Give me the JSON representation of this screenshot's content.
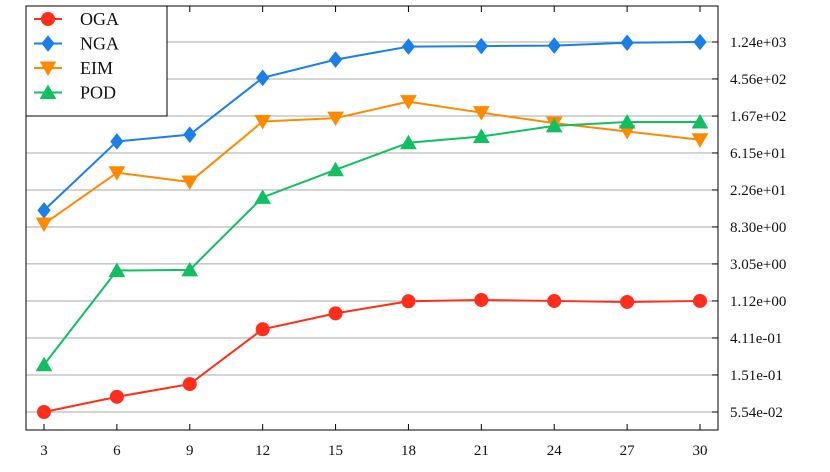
{
  "chart_data": {
    "type": "line",
    "title": "",
    "xlabel": "",
    "ylabel": "",
    "y_scale": "log",
    "x": [
      3,
      6,
      9,
      12,
      15,
      18,
      21,
      24,
      27,
      30
    ],
    "x_tick_labels": [
      "3",
      "6",
      "9",
      "12",
      "15",
      "18",
      "21",
      "24",
      "27",
      "30"
    ],
    "ylim": [
      0.0554,
      1240
    ],
    "y_ticks": [
      0.0554,
      0.151,
      0.411,
      1.12,
      3.05,
      8.3,
      22.6,
      61.5,
      167,
      456,
      1240
    ],
    "y_tick_labels": [
      "5.54e-02",
      "1.51e-01",
      "4.11e-01",
      "1.12e+00",
      "3.05e+00",
      "8.30e+00",
      "2.26e+01",
      "6.15e+01",
      "1.67e+02",
      "4.56e+02",
      "1.24e+03"
    ],
    "grid": "horizontal",
    "y_axis_side": "right",
    "legend_position": "top-left",
    "series": [
      {
        "name": "OGA",
        "marker": "circle",
        "color": "#ff2d1a",
        "values": [
          0.0554,
          0.0835,
          0.118,
          0.52,
          0.8,
          1.11,
          1.15,
          1.12,
          1.09,
          1.12
        ]
      },
      {
        "name": "NGA",
        "marker": "diamond",
        "color": "#1a7fe8",
        "values": [
          13,
          84,
          101,
          470,
          770,
          1095,
          1110,
          1125,
          1215,
          1240
        ]
      },
      {
        "name": "EIM",
        "marker": "triangle-down",
        "color": "#ff8a00",
        "values": [
          9.0,
          36,
          28,
          144,
          158,
          247,
          183,
          138,
          110,
          88
        ]
      },
      {
        "name": "POD",
        "marker": "triangle-up",
        "color": "#10c060",
        "values": [
          0.199,
          2.55,
          2.6,
          18.5,
          39,
          81,
          96,
          128,
          142,
          142
        ]
      }
    ]
  }
}
